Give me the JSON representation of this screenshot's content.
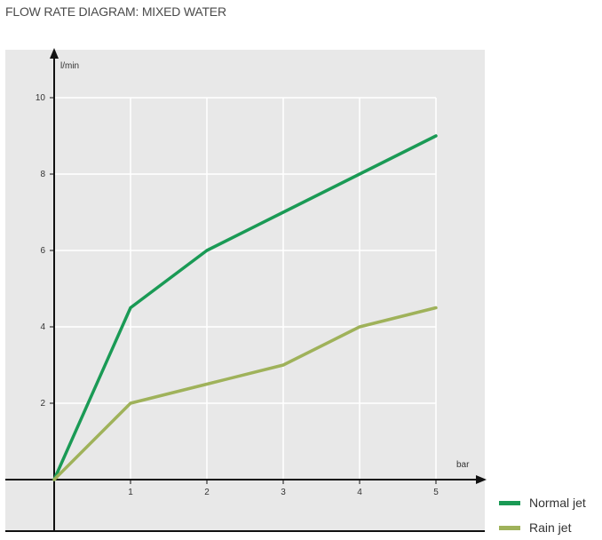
{
  "title": "FLOW RATE DIAGRAM: MIXED WATER",
  "colors": {
    "background_panel": "#e8e8e8",
    "grid": "#ffffff",
    "axis": "#111111",
    "normal_jet": "#1a9a55",
    "rain_jet": "#9fb25a"
  },
  "chart_data": {
    "type": "line",
    "title": "FLOW RATE DIAGRAM: MIXED WATER",
    "xlabel": "bar",
    "ylabel": "l/min",
    "xlim": [
      0,
      5
    ],
    "ylim": [
      0,
      10
    ],
    "x_ticks": [
      1,
      2,
      3,
      4,
      5
    ],
    "y_ticks": [
      2,
      4,
      6,
      8,
      10
    ],
    "grid": true,
    "legend_position": "bottom-right",
    "series": [
      {
        "name": "Normal jet",
        "x": [
          0,
          1,
          2,
          3,
          4,
          5
        ],
        "y": [
          0,
          4.5,
          6,
          7,
          8,
          9
        ]
      },
      {
        "name": "Rain jet",
        "x": [
          0,
          1,
          2,
          3,
          4,
          5
        ],
        "y": [
          0,
          2,
          2.5,
          3,
          4,
          4.5
        ]
      }
    ]
  }
}
